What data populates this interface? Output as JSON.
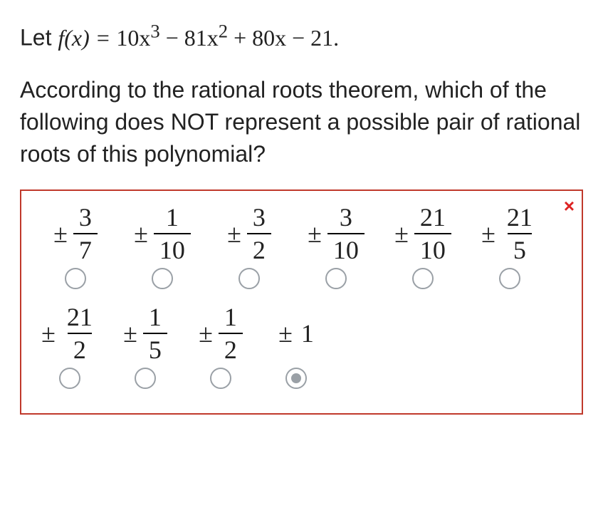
{
  "intro_prefix": "Let  ",
  "func_lhs": "f(x) = ",
  "poly_terms": [
    "10x",
    "3",
    " − 81x",
    "2",
    " + 80x − 21."
  ],
  "question_text": "According to the rational roots theorem, which of the following does NOT represent a possible pair of rational roots of this polynomial?",
  "colors": {
    "box_border": "#c0392b",
    "close_x": "#d22",
    "radio_border": "#9aa0a6"
  },
  "options_row1": [
    {
      "num": "3",
      "den": "7"
    },
    {
      "num": "1",
      "den": "10"
    },
    {
      "num": "3",
      "den": "2"
    },
    {
      "num": "3",
      "den": "10"
    },
    {
      "num": "21",
      "den": "10"
    },
    {
      "num": "21",
      "den": "5"
    }
  ],
  "options_row2": [
    {
      "num": "21",
      "den": "2"
    },
    {
      "num": "1",
      "den": "5"
    },
    {
      "num": "1",
      "den": "2"
    },
    {
      "whole": "1",
      "selected": true
    }
  ],
  "pm_symbol": "±",
  "close_label": "×"
}
